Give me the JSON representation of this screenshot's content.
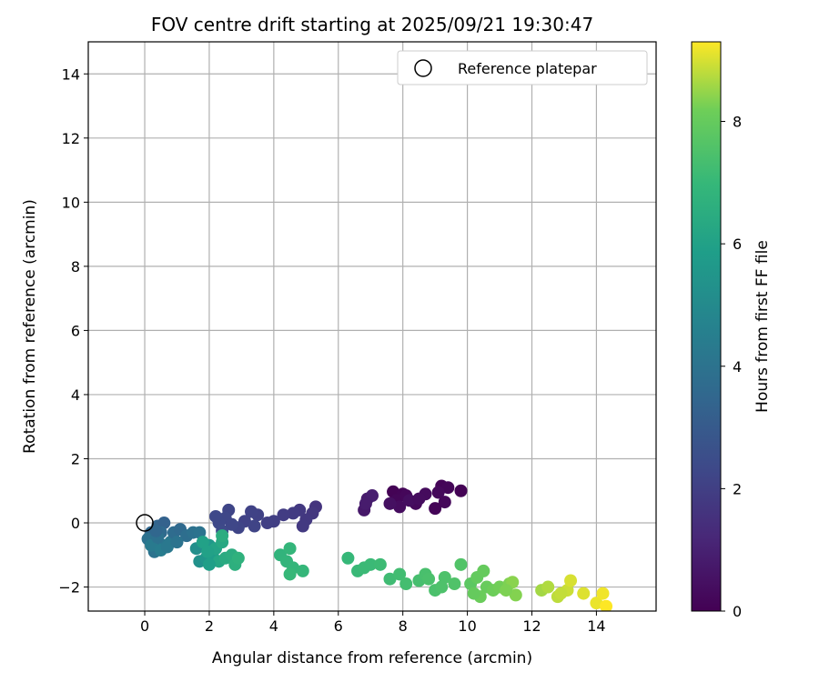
{
  "chart_data": {
    "type": "scatter",
    "title": "FOV centre drift starting at 2025/09/21 19:30:47",
    "xlabel": "Angular distance from reference (arcmin)",
    "ylabel": "Rotation from reference (arcmin)",
    "xlim": [
      -1.75,
      15.85
    ],
    "ylim": [
      -2.75,
      15.0
    ],
    "x_ticks": [
      0,
      2,
      4,
      6,
      8,
      10,
      12,
      14
    ],
    "y_ticks": [
      -2,
      0,
      2,
      4,
      6,
      8,
      10,
      12,
      14
    ],
    "grid": true,
    "legend": {
      "placement": "top-right",
      "entries": [
        "Reference platepar"
      ]
    },
    "reference_point": {
      "x": 0,
      "y": 0,
      "marker": "open circle",
      "label": "Reference platepar"
    },
    "colorbar": {
      "label": "Hours from first FF file",
      "min": 0,
      "max": 9.3,
      "ticks": [
        0,
        2,
        4,
        6,
        8
      ],
      "colormap": "viridis"
    },
    "points": [
      {
        "x": 7.7,
        "y": 0.97,
        "t": 0.05
      },
      {
        "x": 8.0,
        "y": 0.9,
        "t": 0.1
      },
      {
        "x": 7.8,
        "y": 0.7,
        "t": 0.15
      },
      {
        "x": 8.1,
        "y": 0.85,
        "t": 0.2
      },
      {
        "x": 9.2,
        "y": 1.15,
        "t": 0.1
      },
      {
        "x": 9.4,
        "y": 1.1,
        "t": 0.15
      },
      {
        "x": 9.8,
        "y": 1.0,
        "t": 0.05
      },
      {
        "x": 9.1,
        "y": 0.95,
        "t": 0.25
      },
      {
        "x": 9.3,
        "y": 0.65,
        "t": 0.2
      },
      {
        "x": 9.0,
        "y": 0.45,
        "t": 0.1
      },
      {
        "x": 8.4,
        "y": 0.6,
        "t": 0.25
      },
      {
        "x": 8.7,
        "y": 0.9,
        "t": 0.3
      },
      {
        "x": 7.9,
        "y": 0.5,
        "t": 0.35
      },
      {
        "x": 8.2,
        "y": 0.7,
        "t": 0.4
      },
      {
        "x": 7.6,
        "y": 0.6,
        "t": 0.45
      },
      {
        "x": 8.5,
        "y": 0.75,
        "t": 0.35
      },
      {
        "x": 6.8,
        "y": 0.4,
        "t": 0.7
      },
      {
        "x": 6.9,
        "y": 0.75,
        "t": 0.8
      },
      {
        "x": 7.05,
        "y": 0.85,
        "t": 0.9
      },
      {
        "x": 6.85,
        "y": 0.6,
        "t": 0.85
      },
      {
        "x": 5.3,
        "y": 0.5,
        "t": 1.6
      },
      {
        "x": 5.2,
        "y": 0.3,
        "t": 1.7
      },
      {
        "x": 5.0,
        "y": 0.1,
        "t": 1.75
      },
      {
        "x": 4.9,
        "y": -0.1,
        "t": 1.8
      },
      {
        "x": 4.8,
        "y": 0.4,
        "t": 1.8
      },
      {
        "x": 4.6,
        "y": 0.3,
        "t": 1.85
      },
      {
        "x": 4.3,
        "y": 0.25,
        "t": 1.9
      },
      {
        "x": 4.0,
        "y": 0.05,
        "t": 1.95
      },
      {
        "x": 3.8,
        "y": 0.0,
        "t": 2.0
      },
      {
        "x": 3.5,
        "y": 0.25,
        "t": 2.05
      },
      {
        "x": 3.3,
        "y": 0.35,
        "t": 2.1
      },
      {
        "x": 3.1,
        "y": 0.05,
        "t": 2.1
      },
      {
        "x": 2.9,
        "y": -0.15,
        "t": 2.2
      },
      {
        "x": 2.6,
        "y": 0.4,
        "t": 2.2
      },
      {
        "x": 2.5,
        "y": 0.15,
        "t": 2.25
      },
      {
        "x": 2.3,
        "y": 0.0,
        "t": 2.3
      },
      {
        "x": 2.4,
        "y": -0.25,
        "t": 2.35
      },
      {
        "x": 2.2,
        "y": 0.2,
        "t": 2.3
      },
      {
        "x": 3.4,
        "y": -0.1,
        "t": 2.15
      },
      {
        "x": 2.7,
        "y": -0.05,
        "t": 2.25
      },
      {
        "x": 0.2,
        "y": -0.3,
        "t": 3.5
      },
      {
        "x": 0.4,
        "y": -0.1,
        "t": 3.4
      },
      {
        "x": 0.6,
        "y": 0.0,
        "t": 3.3
      },
      {
        "x": 0.5,
        "y": -0.3,
        "t": 3.6
      },
      {
        "x": 0.3,
        "y": -0.6,
        "t": 3.8
      },
      {
        "x": 0.1,
        "y": -0.5,
        "t": 3.9
      },
      {
        "x": 0.3,
        "y": -0.9,
        "t": 4.0
      },
      {
        "x": 0.6,
        "y": -0.7,
        "t": 4.1
      },
      {
        "x": 0.8,
        "y": -0.6,
        "t": 4.2
      },
      {
        "x": 0.9,
        "y": -0.3,
        "t": 3.7
      },
      {
        "x": 1.1,
        "y": -0.2,
        "t": 3.6
      },
      {
        "x": 1.3,
        "y": -0.4,
        "t": 3.8
      },
      {
        "x": 1.5,
        "y": -0.3,
        "t": 3.9
      },
      {
        "x": 1.7,
        "y": -0.3,
        "t": 4.0
      },
      {
        "x": 0.2,
        "y": -0.7,
        "t": 4.3
      },
      {
        "x": 0.5,
        "y": -0.85,
        "t": 4.4
      },
      {
        "x": 0.7,
        "y": -0.75,
        "t": 4.2
      },
      {
        "x": 0.4,
        "y": -0.45,
        "t": 3.9
      },
      {
        "x": 1.0,
        "y": -0.6,
        "t": 4.0
      },
      {
        "x": 0.35,
        "y": -0.25,
        "t": 3.5
      },
      {
        "x": 1.6,
        "y": -0.8,
        "t": 5.2
      },
      {
        "x": 1.7,
        "y": -1.2,
        "t": 5.3
      },
      {
        "x": 1.9,
        "y": -1.1,
        "t": 5.5
      },
      {
        "x": 2.0,
        "y": -0.7,
        "t": 5.6
      },
      {
        "x": 2.1,
        "y": -1.0,
        "t": 5.8
      },
      {
        "x": 1.8,
        "y": -0.6,
        "t": 6.0
      },
      {
        "x": 2.2,
        "y": -0.8,
        "t": 6.1
      },
      {
        "x": 2.3,
        "y": -1.2,
        "t": 6.2
      },
      {
        "x": 2.4,
        "y": -0.6,
        "t": 6.3
      },
      {
        "x": 2.5,
        "y": -1.1,
        "t": 6.4
      },
      {
        "x": 2.4,
        "y": -0.4,
        "t": 6.5
      },
      {
        "x": 2.7,
        "y": -1.0,
        "t": 6.5
      },
      {
        "x": 2.8,
        "y": -1.3,
        "t": 6.6
      },
      {
        "x": 2.9,
        "y": -1.1,
        "t": 6.7
      },
      {
        "x": 2.0,
        "y": -1.3,
        "t": 5.9
      },
      {
        "x": 1.95,
        "y": -0.9,
        "t": 6.0
      },
      {
        "x": 4.2,
        "y": -1.0,
        "t": 6.8
      },
      {
        "x": 4.5,
        "y": -0.8,
        "t": 6.9
      },
      {
        "x": 4.4,
        "y": -1.2,
        "t": 6.85
      },
      {
        "x": 4.6,
        "y": -1.4,
        "t": 6.9
      },
      {
        "x": 4.9,
        "y": -1.5,
        "t": 6.95
      },
      {
        "x": 4.5,
        "y": -1.6,
        "t": 7.0
      },
      {
        "x": 6.3,
        "y": -1.1,
        "t": 7.0
      },
      {
        "x": 6.6,
        "y": -1.5,
        "t": 7.05
      },
      {
        "x": 6.8,
        "y": -1.4,
        "t": 7.1
      },
      {
        "x": 7.0,
        "y": -1.3,
        "t": 7.1
      },
      {
        "x": 7.3,
        "y": -1.3,
        "t": 7.15
      },
      {
        "x": 7.6,
        "y": -1.75,
        "t": 7.2
      },
      {
        "x": 7.9,
        "y": -1.6,
        "t": 7.25
      },
      {
        "x": 8.1,
        "y": -1.9,
        "t": 7.3
      },
      {
        "x": 8.5,
        "y": -1.8,
        "t": 7.35
      },
      {
        "x": 8.7,
        "y": -1.6,
        "t": 7.4
      },
      {
        "x": 9.0,
        "y": -2.1,
        "t": 7.45
      },
      {
        "x": 9.3,
        "y": -1.7,
        "t": 7.5
      },
      {
        "x": 9.6,
        "y": -1.9,
        "t": 7.55
      },
      {
        "x": 9.8,
        "y": -1.3,
        "t": 7.6
      },
      {
        "x": 9.2,
        "y": -2.0,
        "t": 7.5
      },
      {
        "x": 8.8,
        "y": -1.75,
        "t": 7.45
      },
      {
        "x": 10.1,
        "y": -1.9,
        "t": 7.8
      },
      {
        "x": 10.3,
        "y": -1.7,
        "t": 7.95
      },
      {
        "x": 10.5,
        "y": -1.5,
        "t": 8.0
      },
      {
        "x": 10.6,
        "y": -2.0,
        "t": 8.05
      },
      {
        "x": 10.4,
        "y": -2.3,
        "t": 8.1
      },
      {
        "x": 10.8,
        "y": -2.1,
        "t": 8.15
      },
      {
        "x": 11.0,
        "y": -2.0,
        "t": 8.2
      },
      {
        "x": 11.3,
        "y": -1.9,
        "t": 8.3
      },
      {
        "x": 11.5,
        "y": -2.25,
        "t": 8.35
      },
      {
        "x": 11.4,
        "y": -1.85,
        "t": 8.4
      },
      {
        "x": 10.2,
        "y": -2.2,
        "t": 8.0
      },
      {
        "x": 11.2,
        "y": -2.1,
        "t": 8.3
      },
      {
        "x": 12.3,
        "y": -2.1,
        "t": 8.6
      },
      {
        "x": 12.5,
        "y": -2.0,
        "t": 8.7
      },
      {
        "x": 12.8,
        "y": -2.3,
        "t": 8.8
      },
      {
        "x": 13.1,
        "y": -2.1,
        "t": 8.9
      },
      {
        "x": 13.2,
        "y": -1.8,
        "t": 9.0
      },
      {
        "x": 13.6,
        "y": -2.2,
        "t": 9.05
      },
      {
        "x": 14.0,
        "y": -2.5,
        "t": 9.15
      },
      {
        "x": 14.2,
        "y": -2.2,
        "t": 9.2
      },
      {
        "x": 14.3,
        "y": -2.6,
        "t": 9.3
      },
      {
        "x": 12.9,
        "y": -2.2,
        "t": 8.85
      }
    ]
  }
}
